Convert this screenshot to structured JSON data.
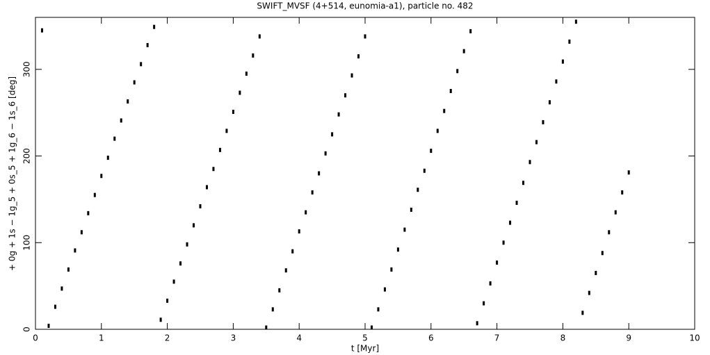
{
  "chart_data": {
    "type": "scatter",
    "title": "SWIFT_MVSF (4+514, eunomia-a1), particle no. 482",
    "x_label": "t [Myr]",
    "y_label": "+ 0g + 1s − 1g_5 + 0s_5 + 1g_6 − 1s_6 [deg]",
    "color": "#000000",
    "xlim": [
      0,
      10
    ],
    "xticks": [
      0,
      1,
      2,
      3,
      4,
      5,
      6,
      7,
      8,
      9,
      10
    ],
    "ylim": [
      0,
      360
    ],
    "yticks": [
      0,
      100,
      200,
      300
    ],
    "x": [
      0.1,
      0.2,
      0.3,
      0.4,
      0.5,
      0.6,
      0.7,
      0.8,
      0.9,
      1.0,
      1.1,
      1.2,
      1.3,
      1.4,
      1.5,
      1.6,
      1.7,
      1.8,
      1.9,
      2.0,
      2.1,
      2.2,
      2.3,
      2.4,
      2.5,
      2.6,
      2.7,
      2.8,
      2.9,
      3.0,
      3.1,
      3.2,
      3.3,
      3.4,
      3.5,
      3.6,
      3.7,
      3.8,
      3.9,
      4.0,
      4.1,
      4.2,
      4.3,
      4.4,
      4.5,
      4.6,
      4.7,
      4.8,
      4.9,
      5.0,
      5.1,
      5.2,
      5.3,
      5.4,
      5.5,
      5.6,
      5.7,
      5.8,
      5.9,
      6.0,
      6.1,
      6.2,
      6.3,
      6.4,
      6.5,
      6.6,
      6.7,
      6.8,
      6.9,
      7.0,
      7.1,
      7.2,
      7.3,
      7.4,
      7.5,
      7.6,
      7.7,
      7.8,
      7.9,
      8.0,
      8.1,
      8.2,
      8.3,
      8.4,
      8.5,
      8.6,
      8.7,
      8.8,
      8.9,
      9.0
    ],
    "values": [
      345,
      4,
      26,
      47,
      69,
      91,
      112,
      134,
      155,
      177,
      198,
      220,
      241,
      263,
      285,
      306,
      328,
      349,
      11,
      33,
      55,
      76,
      98,
      120,
      142,
      164,
      185,
      207,
      229,
      251,
      273,
      295,
      316,
      338,
      2,
      23,
      45,
      68,
      90,
      113,
      135,
      158,
      180,
      203,
      225,
      248,
      270,
      293,
      315,
      338,
      2,
      23,
      46,
      69,
      92,
      115,
      138,
      161,
      183,
      206,
      229,
      252,
      275,
      298,
      321,
      344,
      7,
      30,
      53,
      77,
      100,
      123,
      146,
      169,
      193,
      216,
      239,
      262,
      286,
      309,
      332,
      355,
      19,
      42,
      65,
      88,
      112,
      135,
      158,
      181
    ]
  }
}
